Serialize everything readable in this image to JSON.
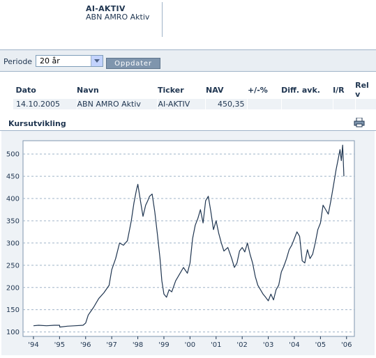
{
  "header": {
    "ticker": "AI-AKTIV",
    "fund_name": "ABN AMRO Aktiv"
  },
  "period": {
    "label": "Periode",
    "selected": "20 år",
    "update_button": "Oppdater"
  },
  "table": {
    "headers": [
      "Dato",
      "Navn",
      "Ticker",
      "NAV",
      "+/-%",
      "Diff. avk.",
      "I/R",
      "Rel v"
    ],
    "row": [
      "14.10.2005",
      "ABN AMRO Aktiv",
      "AI-AKTIV",
      "450,35",
      "",
      "",
      "",
      ""
    ]
  },
  "section": {
    "title": "Kursutvikling",
    "print_icon": "printer-icon"
  },
  "colors": {
    "line": "#1f3550",
    "panel_bg": "#eef2f6",
    "plot_bg": "#ffffff",
    "grid": "#9fb3c8",
    "header_bar": "#e9eef3"
  },
  "chart_data": {
    "type": "line",
    "title": "",
    "xlabel": "",
    "ylabel": "",
    "x_tick_labels": [
      "'94",
      "'95",
      "'96",
      "'97",
      "'98",
      "'99",
      "'00",
      "'01",
      "'02",
      "'03",
      "'04",
      "'05",
      "'06"
    ],
    "y_ticks": [
      100,
      150,
      200,
      250,
      300,
      350,
      400,
      450,
      500
    ],
    "ylim": [
      90,
      530
    ],
    "xlim": [
      1993.6,
      2006.3
    ],
    "grid": "horizontal dashed",
    "series": [
      {
        "x": [
          1994.0,
          1994.2,
          1994.5,
          1994.8,
          1995.0,
          1995.01,
          1995.3,
          1995.6,
          1995.9,
          1996.0,
          1996.1,
          1996.3,
          1996.5,
          1996.7,
          1996.9,
          1997.0,
          1997.15,
          1997.3,
          1997.45,
          1997.6,
          1997.75,
          1997.85,
          1997.95,
          1998.0,
          1998.1,
          1998.2,
          1998.3,
          1998.38,
          1998.45,
          1998.55,
          1998.65,
          1998.75,
          1998.85,
          1998.92,
          1999.0,
          1999.1,
          1999.2,
          1999.3,
          1999.45,
          1999.6,
          1999.75,
          1999.9,
          2000.0,
          2000.1,
          2000.2,
          2000.3,
          2000.4,
          2000.5,
          2000.6,
          2000.7,
          2000.8,
          2000.9,
          2001.0,
          2001.1,
          2001.2,
          2001.3,
          2001.45,
          2001.6,
          2001.7,
          2001.8,
          2001.9,
          2002.0,
          2002.1,
          2002.2,
          2002.3,
          2002.4,
          2002.5,
          2002.6,
          2002.7,
          2002.8,
          2002.9,
          2003.0,
          2003.1,
          2003.2,
          2003.3,
          2003.4,
          2003.5,
          2003.6,
          2003.7,
          2003.8,
          2003.9,
          2004.0,
          2004.1,
          2004.2,
          2004.3,
          2004.4,
          2004.5,
          2004.6,
          2004.7,
          2004.8,
          2004.9,
          2005.0,
          2005.1,
          2005.2,
          2005.3,
          2005.4,
          2005.5,
          2005.6,
          2005.7,
          2005.75,
          2005.8,
          2005.85,
          2005.9
        ],
        "y": [
          114,
          115,
          114,
          115,
          115,
          111,
          113,
          114,
          115,
          120,
          138,
          155,
          175,
          188,
          205,
          240,
          265,
          300,
          295,
          305,
          350,
          390,
          420,
          432,
          395,
          360,
          385,
          395,
          405,
          410,
          370,
          320,
          265,
          215,
          185,
          178,
          195,
          190,
          215,
          230,
          245,
          232,
          255,
          310,
          340,
          355,
          375,
          345,
          395,
          405,
          370,
          330,
          350,
          322,
          300,
          282,
          290,
          265,
          245,
          255,
          282,
          290,
          280,
          300,
          275,
          255,
          225,
          205,
          195,
          185,
          178,
          170,
          185,
          172,
          195,
          205,
          235,
          248,
          265,
          285,
          295,
          310,
          325,
          315,
          260,
          255,
          285,
          265,
          275,
          300,
          330,
          345,
          385,
          375,
          365,
          395,
          430,
          465,
          495,
          510,
          485,
          520,
          450
        ]
      }
    ]
  }
}
